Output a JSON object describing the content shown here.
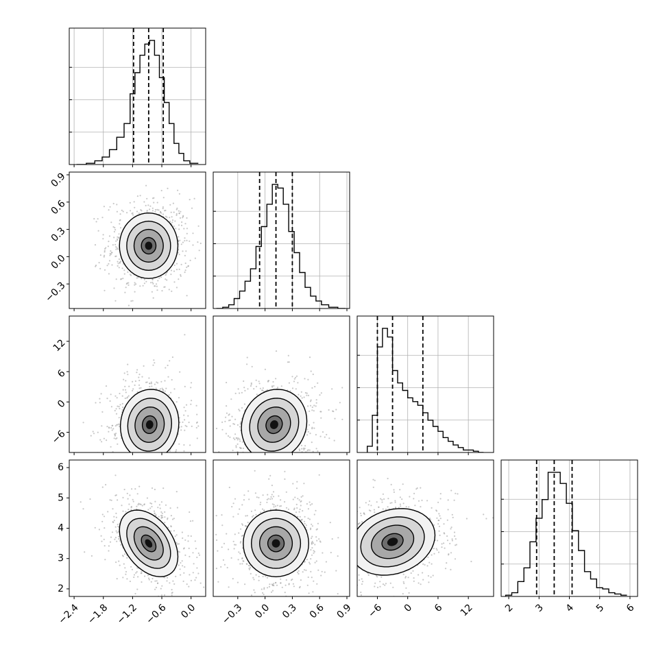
{
  "chart_data": {
    "type": "scatter",
    "title": "",
    "parameters": [
      {
        "range": [
          -2.5,
          0.3
        ],
        "ticks": [
          -2.4,
          -1.8,
          -1.2,
          -0.6,
          0.0
        ],
        "tick_labels": [
          "−2.4",
          "−1.8",
          "−1.2",
          "−0.6",
          "0.0"
        ],
        "median": -0.87,
        "lower": -1.18,
        "upper": -0.57
      },
      {
        "range": [
          -0.57,
          0.93
        ],
        "ticks": [
          -0.3,
          0.0,
          0.3,
          0.6,
          0.9
        ],
        "tick_labels": [
          "−0.3",
          "0.0",
          "0.3",
          "0.6",
          "0.9"
        ],
        "median": 0.12,
        "lower": -0.06,
        "upper": 0.3
      },
      {
        "range": [
          -10.0,
          17.0
        ],
        "ticks": [
          -6,
          0,
          6,
          12
        ],
        "tick_labels": [
          "−6",
          "0",
          "6",
          "12"
        ],
        "median": -3.0,
        "lower": -6.0,
        "upper": 3.0
      },
      {
        "range": [
          1.75,
          6.25
        ],
        "ticks": [
          2,
          3,
          4,
          5,
          6
        ],
        "tick_labels": [
          "2",
          "3",
          "4",
          "5",
          "6"
        ],
        "median": 3.5,
        "lower": 2.92,
        "upper": 4.09
      }
    ],
    "histograms": [
      {
        "x": [
          -2.25,
          -2.05,
          -1.9,
          -1.75,
          -1.6,
          -1.45,
          -1.3,
          -1.2,
          -1.1,
          -1.0,
          -0.9,
          -0.8,
          -0.7,
          -0.6,
          -0.5,
          -0.4,
          -0.3,
          -0.2,
          -0.1,
          0.05
        ],
        "values": [
          0.0,
          0.01,
          0.03,
          0.06,
          0.12,
          0.22,
          0.33,
          0.57,
          0.74,
          0.88,
          0.97,
          1.0,
          0.88,
          0.7,
          0.5,
          0.33,
          0.17,
          0.09,
          0.03,
          0.01
        ]
      },
      {
        "x": [
          -0.5,
          -0.43,
          -0.37,
          -0.31,
          -0.25,
          -0.19,
          -0.13,
          -0.07,
          -0.01,
          0.05,
          0.11,
          0.17,
          0.23,
          0.29,
          0.35,
          0.41,
          0.47,
          0.53,
          0.59,
          0.65,
          0.75,
          0.85
        ],
        "values": [
          0.0,
          0.01,
          0.03,
          0.08,
          0.14,
          0.22,
          0.32,
          0.5,
          0.66,
          0.84,
          1.0,
          0.97,
          0.84,
          0.62,
          0.45,
          0.29,
          0.17,
          0.1,
          0.06,
          0.03,
          0.01,
          0.0
        ]
      },
      {
        "x": [
          -7.5,
          -6.5,
          -5.5,
          -4.5,
          -3.5,
          -2.5,
          -1.5,
          -0.5,
          0.5,
          1.5,
          2.5,
          3.5,
          4.5,
          5.5,
          6.5,
          7.5,
          8.5,
          9.5,
          10.5,
          11.5,
          12.5,
          13.5,
          14.5
        ],
        "values": [
          0.05,
          0.3,
          0.85,
          1.0,
          0.93,
          0.66,
          0.56,
          0.5,
          0.44,
          0.41,
          0.38,
          0.32,
          0.26,
          0.21,
          0.17,
          0.12,
          0.09,
          0.06,
          0.04,
          0.02,
          0.02,
          0.01,
          0.0
        ]
      },
      {
        "x": [
          2.0,
          2.2,
          2.4,
          2.6,
          2.8,
          3.0,
          3.2,
          3.4,
          3.6,
          3.8,
          4.0,
          4.2,
          4.4,
          4.6,
          4.8,
          5.0,
          5.2,
          5.4,
          5.6,
          5.8
        ],
        "values": [
          0.01,
          0.03,
          0.12,
          0.23,
          0.44,
          0.63,
          0.78,
          1.0,
          1.0,
          0.91,
          0.75,
          0.53,
          0.37,
          0.2,
          0.14,
          0.07,
          0.06,
          0.03,
          0.02,
          0.01
        ]
      }
    ],
    "pairs": [
      {
        "x_param": 0,
        "y_param": 1,
        "mean": [
          -0.87,
          0.12
        ],
        "sd": [
          0.3,
          0.18
        ],
        "rho": 0.0
      },
      {
        "x_param": 0,
        "y_param": 2,
        "mean": [
          -0.85,
          -4.5
        ],
        "sd": [
          0.3,
          3.5
        ],
        "rho": 0.05
      },
      {
        "x_param": 1,
        "y_param": 2,
        "mean": [
          0.1,
          -4.5
        ],
        "sd": [
          0.18,
          3.5
        ],
        "rho": 0.1
      },
      {
        "x_param": 0,
        "y_param": 3,
        "mean": [
          -0.87,
          3.5
        ],
        "sd": [
          0.3,
          0.55
        ],
        "rho": -0.4
      },
      {
        "x_param": 1,
        "y_param": 3,
        "mean": [
          0.12,
          3.5
        ],
        "sd": [
          0.18,
          0.55
        ],
        "rho": 0.0
      },
      {
        "x_param": 2,
        "y_param": 3,
        "mean": [
          -3.0,
          3.55
        ],
        "sd": [
          4.2,
          0.55
        ],
        "rho": 0.2
      }
    ],
    "grid": true,
    "colors": {
      "ink": "#000000",
      "points": "#9a9a9a",
      "grid": "#b0b0b0"
    }
  }
}
